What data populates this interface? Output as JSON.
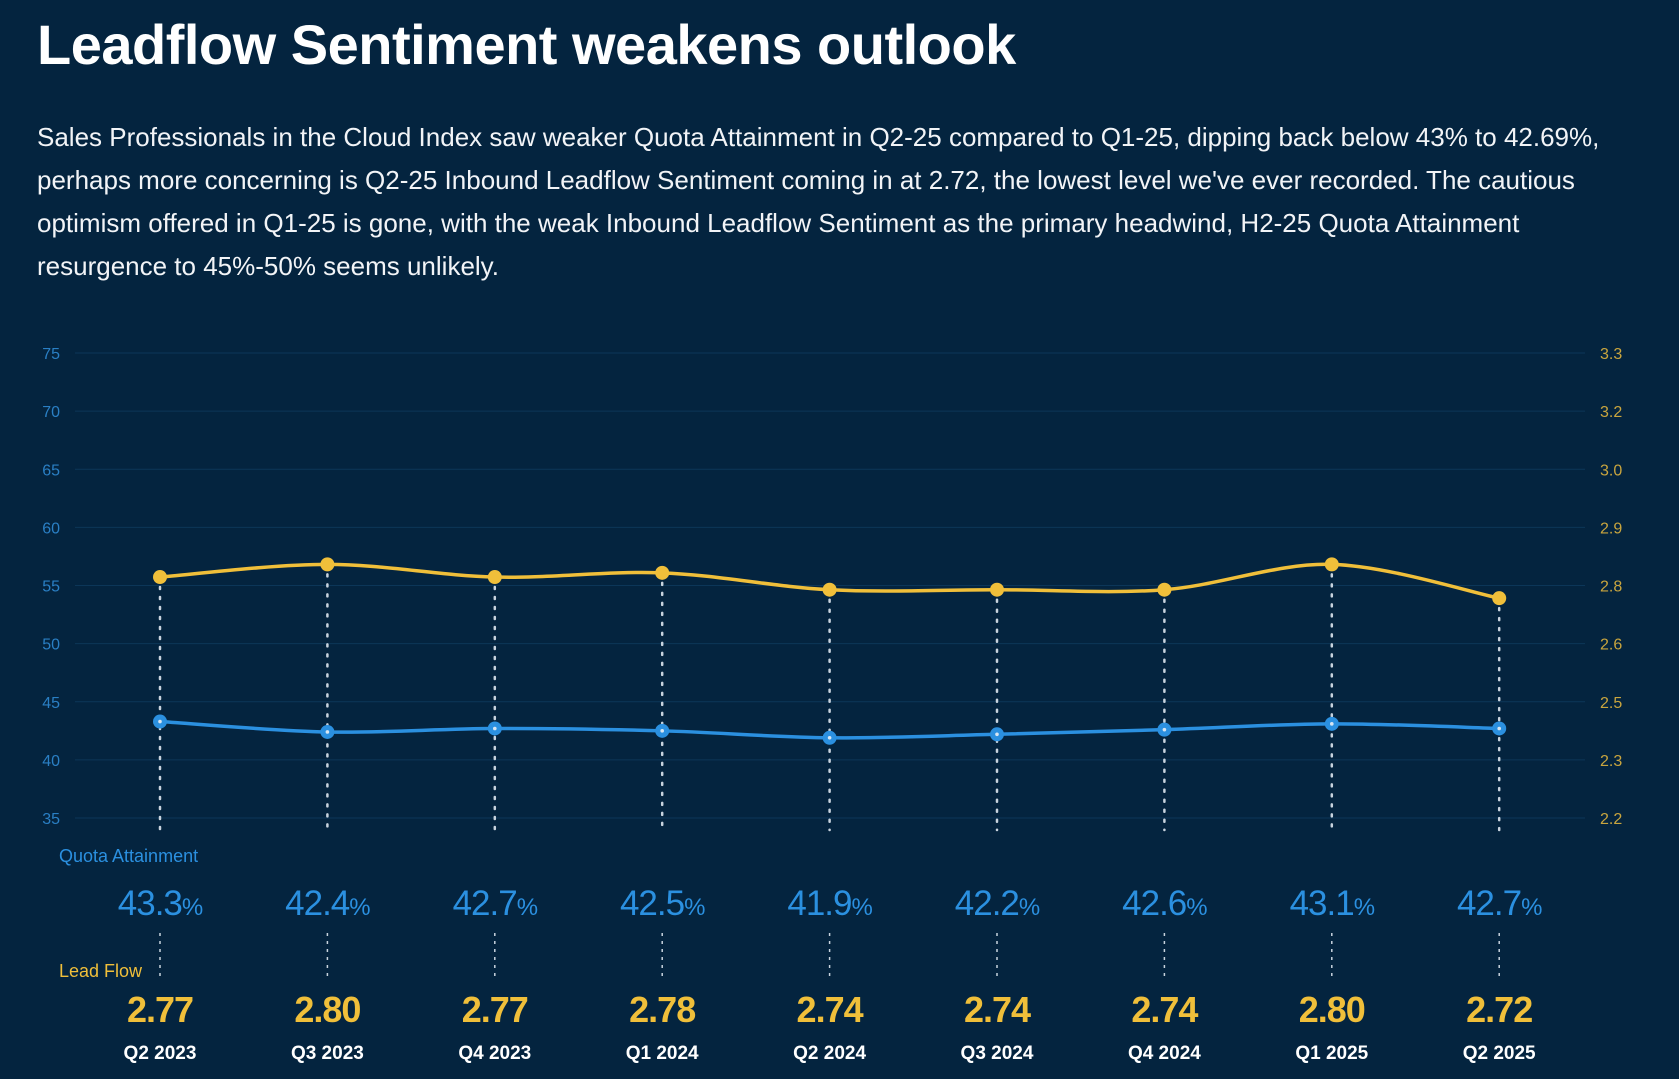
{
  "title": "Leadflow Sentiment weakens outlook",
  "description": "Sales Professionals in the Cloud Index saw weaker Quota Attainment in Q2-25 compared to Q1-25, dipping back below 43% to 42.69%, perhaps more concerning is Q2-25 Inbound Leadflow Sentiment coming in at 2.72, the lowest level we've ever recorded. The cautious optimism offered in Q1-25 is gone, with the weak Inbound Leadflow Sentiment as the primary headwind, H2-25 Quota Attainment resurgence to 45%-50% seems unlikely.",
  "colors": {
    "background": "#04243f",
    "quota": "#2b90e0",
    "leadflow": "#f0bf3a",
    "grid": "#0c3658"
  },
  "chart_data": {
    "type": "line",
    "categories": [
      "Q2 2023",
      "Q3 2023",
      "Q4 2023",
      "Q1 2024",
      "Q2 2024",
      "Q3 2024",
      "Q4 2024",
      "Q1 2025",
      "Q2 2025"
    ],
    "left_axis": {
      "range": [
        35,
        75
      ],
      "ticks": [
        "75",
        "70",
        "65",
        "60",
        "55",
        "50",
        "45",
        "40",
        "35"
      ]
    },
    "right_axis": {
      "range": [
        2.2,
        3.3
      ],
      "ticks": [
        "3.3",
        "3.2",
        "3.0",
        "2.9",
        "2.8",
        "2.6",
        "2.5",
        "2.3",
        "2.2"
      ]
    },
    "series": [
      {
        "name": "Quota Attainment",
        "axis": "left",
        "values": [
          43.3,
          42.4,
          42.7,
          42.5,
          41.9,
          42.2,
          42.6,
          43.1,
          42.7
        ],
        "labels": [
          "43.3",
          "42.4",
          "42.7",
          "42.5",
          "41.9",
          "42.2",
          "42.6",
          "43.1",
          "42.7"
        ],
        "unit": "%"
      },
      {
        "name": "Lead Flow",
        "axis": "right",
        "values": [
          2.77,
          2.8,
          2.77,
          2.78,
          2.74,
          2.74,
          2.74,
          2.8,
          2.72
        ],
        "labels": [
          "2.77",
          "2.80",
          "2.77",
          "2.78",
          "2.74",
          "2.74",
          "2.74",
          "2.80",
          "2.72"
        ]
      }
    ],
    "grid": true
  }
}
